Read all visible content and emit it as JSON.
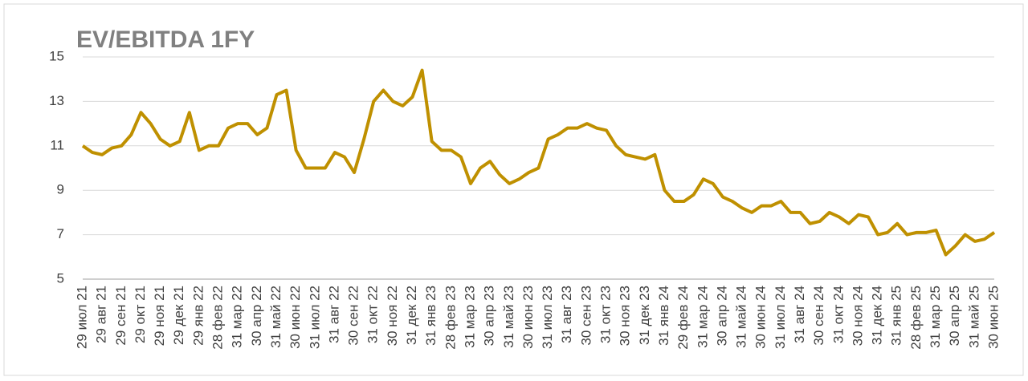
{
  "chart_data": {
    "type": "line",
    "title": "EV/EBITDA 1FY",
    "categories": [
      "29 июл 21",
      null,
      "29 авг 21",
      null,
      "29 сен 21",
      null,
      "29 окт 21",
      null,
      "29 ноя 21",
      null,
      "29 дек 21",
      null,
      "29 янв 22",
      null,
      "28 фев 22",
      null,
      "31 мар 22",
      null,
      "30 апр 22",
      null,
      "31 май 22",
      null,
      "30 июн 22",
      null,
      "31 июл 22",
      null,
      "31 авг 22",
      null,
      "30 сен 22",
      null,
      "31 окт 22",
      null,
      "30 ноя 22",
      null,
      "31 дек 22",
      null,
      "31 янв 23",
      null,
      "28 фев 23",
      null,
      "31 мар 23",
      null,
      "30 апр 23",
      null,
      "31 май 23",
      null,
      "30 июн 23",
      null,
      "31 июл 23",
      null,
      "31 авг 23",
      null,
      "30 сен 23",
      null,
      "31 окт 23",
      null,
      "30 ноя 23",
      null,
      "31 дек 23",
      null,
      "31 янв 24",
      null,
      "29 фев 24",
      null,
      "31 мар 24",
      null,
      "30 апр 24",
      null,
      "31 май 24",
      null,
      "30 июн 24",
      null,
      "31 июл 24",
      null,
      "31 авг 24",
      null,
      "30 сен 24",
      null,
      "31 окт 24",
      null,
      "30 ноя 24",
      null,
      "31 дек 24",
      null,
      "31 янв 25",
      null,
      "28 фев 25",
      null,
      "31 мар 25",
      null,
      "30 апр 25",
      null,
      "31 май 25",
      null,
      "30 июн 25"
    ],
    "series": [
      {
        "name": "EV/EBITDA 1FY",
        "color": "#bf9000",
        "values": [
          11.0,
          10.7,
          10.6,
          10.9,
          11.0,
          11.5,
          12.5,
          12.0,
          11.3,
          11.0,
          11.2,
          12.5,
          10.8,
          11.0,
          11.0,
          11.8,
          12.0,
          12.0,
          11.5,
          11.8,
          13.3,
          13.5,
          10.8,
          10.0,
          10.0,
          10.0,
          10.7,
          10.5,
          9.8,
          11.3,
          13.0,
          13.5,
          13.0,
          12.8,
          13.2,
          14.4,
          11.2,
          10.8,
          10.8,
          10.5,
          9.3,
          10.0,
          10.3,
          9.7,
          9.3,
          9.5,
          9.8,
          10.0,
          11.3,
          11.5,
          11.8,
          11.8,
          12.0,
          11.8,
          11.7,
          11.0,
          10.6,
          10.5,
          10.4,
          10.6,
          9.0,
          8.5,
          8.5,
          8.8,
          9.5,
          9.3,
          8.7,
          8.5,
          8.2,
          8.0,
          8.3,
          8.3,
          8.5,
          8.0,
          8.0,
          7.5,
          7.6,
          8.0,
          7.8,
          7.5,
          7.9,
          7.8,
          7.0,
          7.1,
          7.5,
          7.0,
          7.1,
          7.1,
          7.2,
          6.1,
          6.5,
          7.0,
          6.7,
          6.8,
          7.1
        ]
      }
    ],
    "ylim": [
      5,
      15
    ],
    "yticks": [
      5,
      7,
      9,
      11,
      13,
      15
    ],
    "grid": true
  }
}
